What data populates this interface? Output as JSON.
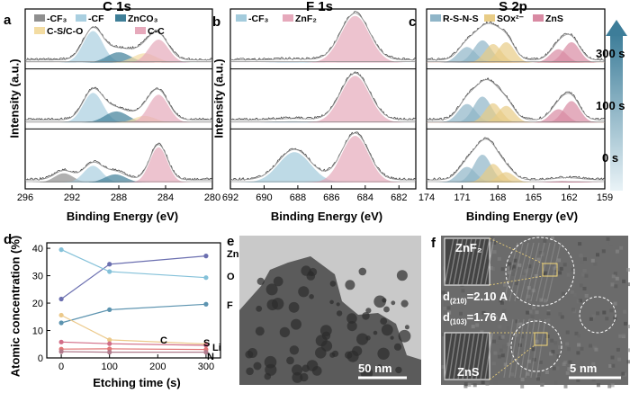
{
  "panel_labels": {
    "a": "a",
    "b": "b",
    "c": "c",
    "d": "d",
    "e": "e",
    "f": "f"
  },
  "xps_axis_ylabel": "Intensity (a.u.)",
  "xps_axis_xlabel": "Binding Energy (eV)",
  "depth_arrow": {
    "labels": [
      "300 s",
      "100 s",
      "0 s"
    ]
  },
  "micrographs": {
    "tem_scale": "50 nm",
    "hrtem_scale": "5 nm",
    "inset_top": "ZnF₂",
    "inset_bottom": "ZnS",
    "d1_prefix": "d",
    "d1_sub": "(210)",
    "d1_value": "=2.10 A",
    "d2_prefix": "d",
    "d2_sub": "(103)",
    "d2_value": "=1.76 A"
  },
  "chart_data": [
    {
      "id": "a",
      "type": "line",
      "title": "C 1s",
      "xlabel": "Binding Energy (eV)",
      "ylabel": "Intensity (a.u.)",
      "xlim": [
        296,
        280
      ],
      "xticks": [
        296,
        292,
        288,
        284,
        280
      ],
      "legend": [
        {
          "name": "-CF₃",
          "color": "#8f8f8f"
        },
        {
          "name": "-CF",
          "color": "#a9cfe0"
        },
        {
          "name": "ZnCO₃",
          "color": "#3f7f98"
        },
        {
          "name": "C-S/C-O",
          "color": "#f3dca2"
        },
        {
          "name": "C-C",
          "color": "#e6a9bb"
        }
      ],
      "rows": [
        {
          "etch": "300 s",
          "peaks": [
            {
              "name": "-CF",
              "center": 290.2,
              "amp": 0.85,
              "width": 0.85
            },
            {
              "name": "ZnCO₃",
              "center": 288.0,
              "amp": 0.28,
              "width": 1.0
            },
            {
              "name": "C-S/C-O",
              "center": 285.8,
              "amp": 0.25,
              "width": 1.0
            },
            {
              "name": "C-C",
              "center": 284.6,
              "amp": 0.62,
              "width": 0.85
            }
          ]
        },
        {
          "etch": "100 s",
          "peaks": [
            {
              "name": "-CF",
              "center": 290.2,
              "amp": 0.8,
              "width": 0.85
            },
            {
              "name": "ZnCO₃",
              "center": 288.2,
              "amp": 0.3,
              "width": 1.0
            },
            {
              "name": "C-S/C-O",
              "center": 285.8,
              "amp": 0.18,
              "width": 0.9
            },
            {
              "name": "C-C",
              "center": 284.6,
              "amp": 0.75,
              "width": 0.85
            }
          ]
        },
        {
          "etch": "0 s",
          "peaks": [
            {
              "name": "-CF₃",
              "center": 292.7,
              "amp": 0.25,
              "width": 0.8
            },
            {
              "name": "-CF",
              "center": 290.2,
              "amp": 0.45,
              "width": 0.8
            },
            {
              "name": "ZnCO₃",
              "center": 288.3,
              "amp": 0.22,
              "width": 0.9
            },
            {
              "name": "C-C",
              "center": 284.6,
              "amp": 0.95,
              "width": 0.75
            }
          ]
        }
      ]
    },
    {
      "id": "b",
      "type": "line",
      "title": "F 1s",
      "xlabel": "Binding Energy (eV)",
      "ylabel": "Intensity (a.u.)",
      "xlim": [
        692,
        681
      ],
      "xticks": [
        692,
        690,
        688,
        686,
        684,
        682
      ],
      "legend": [
        {
          "name": "-CF₃",
          "color": "#a3cbdc"
        },
        {
          "name": "ZnF₂",
          "color": "#e6a9bb"
        }
      ],
      "rows": [
        {
          "etch": "300 s",
          "peaks": [
            {
              "name": "-CF₃",
              "center": 688.3,
              "amp": 0.02,
              "width": 0.9
            },
            {
              "name": "ZnF₂",
              "center": 684.6,
              "amp": 1.0,
              "width": 0.85
            }
          ]
        },
        {
          "etch": "100 s",
          "peaks": [
            {
              "name": "-CF₃",
              "center": 688.3,
              "amp": 0.03,
              "width": 0.9
            },
            {
              "name": "ZnF₂",
              "center": 684.6,
              "amp": 1.0,
              "width": 0.85
            }
          ]
        },
        {
          "etch": "0 s",
          "peaks": [
            {
              "name": "-CF₃",
              "center": 688.2,
              "amp": 0.65,
              "width": 0.95
            },
            {
              "name": "ZnF₂",
              "center": 684.6,
              "amp": 1.0,
              "width": 0.8
            }
          ]
        }
      ]
    },
    {
      "id": "c",
      "type": "line",
      "title": "S 2p",
      "xlabel": "Binding Energy (eV)",
      "ylabel": "Intensity (a.u.)",
      "xlim": [
        174,
        159
      ],
      "xticks": [
        174,
        171,
        168,
        165,
        162,
        159
      ],
      "legend": [
        {
          "name": "R-S-N-S",
          "color": "#8fb5c8"
        },
        {
          "name": "SOx²⁻",
          "color": "#e8cc86"
        },
        {
          "name": "ZnS",
          "color": "#d98aa3"
        }
      ],
      "rows": [
        {
          "etch": "300 s",
          "peaks": [
            {
              "name": "R-S-N-S",
              "center": 170.6,
              "amp": 0.42,
              "width": 0.75
            },
            {
              "name": "R-S-N-S",
              "center": 169.3,
              "amp": 0.6,
              "width": 0.75
            },
            {
              "name": "SOx²⁻",
              "center": 168.4,
              "amp": 0.5,
              "width": 0.7
            },
            {
              "name": "SOx²⁻",
              "center": 167.3,
              "amp": 0.55,
              "width": 0.7
            },
            {
              "name": "ZnS",
              "center": 162.9,
              "amp": 0.36,
              "width": 0.7
            },
            {
              "name": "ZnS",
              "center": 161.8,
              "amp": 0.55,
              "width": 0.7
            }
          ]
        },
        {
          "etch": "100 s",
          "peaks": [
            {
              "name": "R-S-N-S",
              "center": 170.6,
              "amp": 0.5,
              "width": 0.75
            },
            {
              "name": "R-S-N-S",
              "center": 169.3,
              "amp": 0.7,
              "width": 0.75
            },
            {
              "name": "SOx²⁻",
              "center": 168.4,
              "amp": 0.52,
              "width": 0.7
            },
            {
              "name": "SOx²⁻",
              "center": 167.3,
              "amp": 0.45,
              "width": 0.7
            },
            {
              "name": "ZnS",
              "center": 162.9,
              "amp": 0.36,
              "width": 0.7
            },
            {
              "name": "ZnS",
              "center": 161.8,
              "amp": 0.58,
              "width": 0.7
            }
          ]
        },
        {
          "etch": "0 s",
          "peaks": [
            {
              "name": "R-S-N-S",
              "center": 170.6,
              "amp": 0.42,
              "width": 0.75
            },
            {
              "name": "R-S-N-S",
              "center": 169.3,
              "amp": 0.75,
              "width": 0.75
            },
            {
              "name": "SOx²⁻",
              "center": 168.4,
              "amp": 0.5,
              "width": 0.7
            },
            {
              "name": "SOx²⁻",
              "center": 167.3,
              "amp": 0.28,
              "width": 0.7
            },
            {
              "name": "ZnS",
              "center": 162.6,
              "amp": 0.04,
              "width": 0.9
            },
            {
              "name": "ZnS",
              "center": 161.5,
              "amp": 0.03,
              "width": 0.9
            }
          ]
        }
      ]
    },
    {
      "id": "d",
      "type": "line",
      "xlabel": "Etching time (s)",
      "ylabel": "Atomic concentration (%)",
      "x": [
        0,
        100,
        300
      ],
      "xlim": [
        -30,
        330
      ],
      "ylim": [
        0,
        42
      ],
      "xticks": [
        0,
        100,
        200,
        300
      ],
      "yticks": [
        0,
        10,
        20,
        30,
        40
      ],
      "series": [
        {
          "name": "Zn",
          "values": [
            21.5,
            34.2,
            37.2
          ],
          "color": "#6b6fb0"
        },
        {
          "name": "O",
          "values": [
            39.5,
            31.5,
            29.3
          ],
          "color": "#84c1d9"
        },
        {
          "name": "F",
          "values": [
            12.8,
            17.6,
            19.6
          ],
          "color": "#5d94b0"
        },
        {
          "name": "C",
          "values": [
            15.6,
            6.6,
            5.1
          ],
          "color": "#ecc98a"
        },
        {
          "name": "S",
          "values": [
            5.8,
            5.2,
            4.6
          ],
          "color": "#d26d87"
        },
        {
          "name": "Li",
          "values": [
            3.2,
            3.3,
            3.1
          ],
          "color": "#e07575"
        },
        {
          "name": "N",
          "values": [
            2.3,
            2.1,
            2.1
          ],
          "color": "#b07a8c"
        }
      ]
    }
  ]
}
